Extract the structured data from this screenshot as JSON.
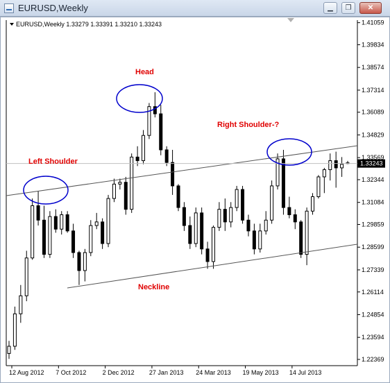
{
  "window": {
    "title": "EURUSD,Weekly",
    "minimize_glyph": "▁",
    "restore_glyph": "❐",
    "close_glyph": "✕"
  },
  "chart_data": {
    "type": "candlestick",
    "symbol_header": "EURUSD,Weekly  1.33279 1.33391 1.33210 1.33243",
    "price_ticks": [
      "1.41059",
      "1.39834",
      "1.38574",
      "1.37314",
      "1.36089",
      "1.34829",
      "1.33569",
      "1.32344",
      "1.31084",
      "1.29859",
      "1.28599",
      "1.27339",
      "1.26114",
      "1.24854",
      "1.23594",
      "1.22369"
    ],
    "time_ticks": [
      "12 Aug 2012",
      "7 Oct 2012",
      "2 Dec 2012",
      "27 Jan 2013",
      "24 Mar 2013",
      "19 May 2013",
      "14 Jul 2013"
    ],
    "current_price": "1.33243",
    "ylim": [
      1.221,
      1.412
    ],
    "annotations": {
      "head": "Head",
      "left_shoulder": "Left Shoulder",
      "right_shoulder": "Right Shoulder-?",
      "neckline": "Neckline"
    },
    "candles": [
      {
        "o": 1.227,
        "h": 1.234,
        "l": 1.224,
        "c": 1.231
      },
      {
        "o": 1.231,
        "h": 1.253,
        "l": 1.229,
        "c": 1.249
      },
      {
        "o": 1.249,
        "h": 1.265,
        "l": 1.244,
        "c": 1.259
      },
      {
        "o": 1.259,
        "h": 1.284,
        "l": 1.256,
        "c": 1.28
      },
      {
        "o": 1.28,
        "h": 1.313,
        "l": 1.279,
        "c": 1.309
      },
      {
        "o": 1.309,
        "h": 1.317,
        "l": 1.298,
        "c": 1.301
      },
      {
        "o": 1.301,
        "h": 1.309,
        "l": 1.28,
        "c": 1.282
      },
      {
        "o": 1.282,
        "h": 1.306,
        "l": 1.28,
        "c": 1.303
      },
      {
        "o": 1.303,
        "h": 1.307,
        "l": 1.294,
        "c": 1.296
      },
      {
        "o": 1.296,
        "h": 1.306,
        "l": 1.293,
        "c": 1.304
      },
      {
        "o": 1.304,
        "h": 1.306,
        "l": 1.294,
        "c": 1.295
      },
      {
        "o": 1.295,
        "h": 1.299,
        "l": 1.28,
        "c": 1.283
      },
      {
        "o": 1.283,
        "h": 1.284,
        "l": 1.265,
        "c": 1.273
      },
      {
        "o": 1.273,
        "h": 1.285,
        "l": 1.267,
        "c": 1.283
      },
      {
        "o": 1.283,
        "h": 1.301,
        "l": 1.281,
        "c": 1.298
      },
      {
        "o": 1.298,
        "h": 1.305,
        "l": 1.296,
        "c": 1.3
      },
      {
        "o": 1.3,
        "h": 1.302,
        "l": 1.285,
        "c": 1.288
      },
      {
        "o": 1.288,
        "h": 1.315,
        "l": 1.286,
        "c": 1.313
      },
      {
        "o": 1.313,
        "h": 1.324,
        "l": 1.311,
        "c": 1.321
      },
      {
        "o": 1.321,
        "h": 1.324,
        "l": 1.318,
        "c": 1.322
      },
      {
        "o": 1.322,
        "h": 1.325,
        "l": 1.304,
        "c": 1.307
      },
      {
        "o": 1.307,
        "h": 1.338,
        "l": 1.305,
        "c": 1.336
      },
      {
        "o": 1.336,
        "h": 1.342,
        "l": 1.331,
        "c": 1.334
      },
      {
        "o": 1.334,
        "h": 1.351,
        "l": 1.332,
        "c": 1.348
      },
      {
        "o": 1.348,
        "h": 1.366,
        "l": 1.346,
        "c": 1.364
      },
      {
        "o": 1.364,
        "h": 1.372,
        "l": 1.358,
        "c": 1.36
      },
      {
        "o": 1.36,
        "h": 1.365,
        "l": 1.337,
        "c": 1.34
      },
      {
        "o": 1.34,
        "h": 1.342,
        "l": 1.331,
        "c": 1.333
      },
      {
        "o": 1.333,
        "h": 1.34,
        "l": 1.315,
        "c": 1.32
      },
      {
        "o": 1.32,
        "h": 1.321,
        "l": 1.306,
        "c": 1.308
      },
      {
        "o": 1.308,
        "h": 1.311,
        "l": 1.295,
        "c": 1.298
      },
      {
        "o": 1.298,
        "h": 1.303,
        "l": 1.285,
        "c": 1.288
      },
      {
        "o": 1.288,
        "h": 1.308,
        "l": 1.286,
        "c": 1.305
      },
      {
        "o": 1.305,
        "h": 1.308,
        "l": 1.282,
        "c": 1.285
      },
      {
        "o": 1.285,
        "h": 1.289,
        "l": 1.274,
        "c": 1.278
      },
      {
        "o": 1.278,
        "h": 1.298,
        "l": 1.274,
        "c": 1.297
      },
      {
        "o": 1.297,
        "h": 1.311,
        "l": 1.295,
        "c": 1.307
      },
      {
        "o": 1.307,
        "h": 1.313,
        "l": 1.295,
        "c": 1.3
      },
      {
        "o": 1.3,
        "h": 1.311,
        "l": 1.297,
        "c": 1.308
      },
      {
        "o": 1.308,
        "h": 1.32,
        "l": 1.306,
        "c": 1.318
      },
      {
        "o": 1.318,
        "h": 1.32,
        "l": 1.299,
        "c": 1.301
      },
      {
        "o": 1.301,
        "h": 1.304,
        "l": 1.292,
        "c": 1.295
      },
      {
        "o": 1.295,
        "h": 1.299,
        "l": 1.282,
        "c": 1.285
      },
      {
        "o": 1.285,
        "h": 1.299,
        "l": 1.283,
        "c": 1.295
      },
      {
        "o": 1.295,
        "h": 1.306,
        "l": 1.293,
        "c": 1.301
      },
      {
        "o": 1.301,
        "h": 1.323,
        "l": 1.299,
        "c": 1.32
      },
      {
        "o": 1.32,
        "h": 1.338,
        "l": 1.318,
        "c": 1.335
      },
      {
        "o": 1.335,
        "h": 1.34,
        "l": 1.304,
        "c": 1.308
      },
      {
        "o": 1.308,
        "h": 1.314,
        "l": 1.302,
        "c": 1.304
      },
      {
        "o": 1.304,
        "h": 1.307,
        "l": 1.296,
        "c": 1.3
      },
      {
        "o": 1.3,
        "h": 1.301,
        "l": 1.28,
        "c": 1.282
      },
      {
        "o": 1.282,
        "h": 1.308,
        "l": 1.276,
        "c": 1.306
      },
      {
        "o": 1.306,
        "h": 1.316,
        "l": 1.304,
        "c": 1.314
      },
      {
        "o": 1.314,
        "h": 1.326,
        "l": 1.313,
        "c": 1.325
      },
      {
        "o": 1.325,
        "h": 1.33,
        "l": 1.316,
        "c": 1.329
      },
      {
        "o": 1.329,
        "h": 1.338,
        "l": 1.323,
        "c": 1.334
      },
      {
        "o": 1.334,
        "h": 1.339,
        "l": 1.319,
        "c": 1.33
      },
      {
        "o": 1.33,
        "h": 1.336,
        "l": 1.325,
        "c": 1.332
      },
      {
        "o": 1.3328,
        "h": 1.3339,
        "l": 1.3321,
        "c": 1.3324
      }
    ]
  }
}
